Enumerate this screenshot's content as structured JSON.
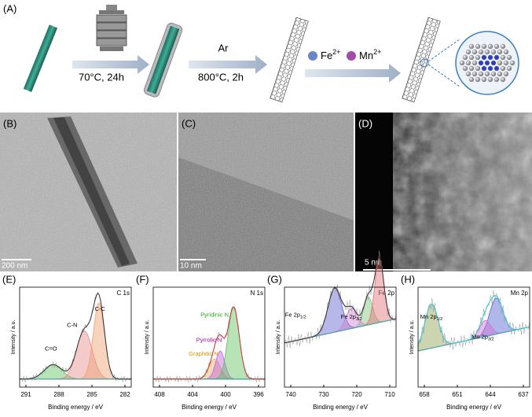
{
  "schematic": {
    "label": "(A)",
    "step1": "70°C,  24h",
    "step2_gas": "Ar",
    "step2": "800°C,  2h",
    "ions": [
      {
        "element": "Fe",
        "charge": "2+"
      },
      {
        "element": "Mn",
        "charge": "2+"
      }
    ]
  },
  "micrographs": [
    {
      "label": "(B)",
      "scale": "200 nm"
    },
    {
      "label": "(C)",
      "scale": "10 nm"
    },
    {
      "label": "(D)",
      "scale": "5 nm"
    }
  ],
  "spectra": [
    {
      "label": "(E)",
      "region": "C 1s",
      "x_label": "Binding energy / eV",
      "y_label": "Intensity / a.u.",
      "xticks": [
        "291",
        "288",
        "285",
        "282"
      ],
      "peaks": [
        {
          "base": "C=O"
        },
        {
          "base": "C-N"
        },
        {
          "base": "C-C"
        }
      ]
    },
    {
      "label": "(F)",
      "region": "N 1s",
      "x_label": "Binding energy / eV",
      "y_label": "Intensity / a.u.",
      "xticks": [
        "408",
        "404",
        "400",
        "396"
      ],
      "peaks": [
        {
          "base": "Pyridinic N"
        },
        {
          "base": "Pyrrolic N"
        },
        {
          "base": "Graphitic N"
        }
      ]
    },
    {
      "label": "(G)",
      "region": "Fe 2p",
      "x_label": "Binding energy / eV",
      "y_label": "Intensity / a.u.",
      "xticks": [
        "740",
        "730",
        "720",
        "710"
      ],
      "peaks": [
        {
          "base": "Fe 2p",
          "sub": "1/2"
        },
        {
          "base": "Fe 2p",
          "sub": "3/2"
        }
      ]
    },
    {
      "label": "(H)",
      "region": "Mn 2p",
      "x_label": "Binding energy / eV",
      "y_label": "Intensity / a.u.",
      "xticks": [
        "658",
        "651",
        "644",
        "637"
      ],
      "peaks": [
        {
          "base": "Mn 2p",
          "sub": "1/2"
        },
        {
          "base": "Mn 2p",
          "sub": "3/2"
        }
      ]
    }
  ]
}
